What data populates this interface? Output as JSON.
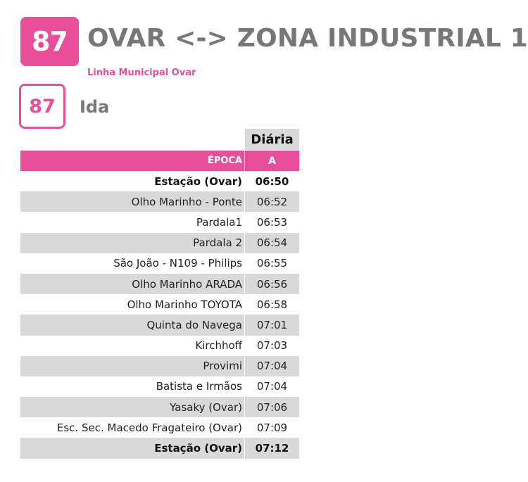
{
  "header": {
    "route_number": "87",
    "route_title": "OVAR <-> ZONA INDUSTRIAL 1",
    "subtitle": "Linha Municipal Ovar",
    "direction_number": "87",
    "direction_label": "Ida"
  },
  "colors": {
    "accent": "#e84e9a",
    "title_gray": "#777777",
    "row_shade": "#d9d9d9"
  },
  "timetable": {
    "day_header": "Diária",
    "season_label": "ÉPOCA",
    "season_value": "A",
    "stops": [
      {
        "name": "Estação (Ovar)",
        "time": "06:50",
        "bold": true,
        "shaded": false
      },
      {
        "name": "Olho Marinho - Ponte",
        "time": "06:52",
        "bold": false,
        "shaded": true
      },
      {
        "name": "Pardala1",
        "time": "06:53",
        "bold": false,
        "shaded": false
      },
      {
        "name": "Pardala 2",
        "time": "06:54",
        "bold": false,
        "shaded": true
      },
      {
        "name": "São João - N109 - Philips",
        "time": "06:55",
        "bold": false,
        "shaded": false
      },
      {
        "name": "Olho Marinho ARADA",
        "time": "06:56",
        "bold": false,
        "shaded": true
      },
      {
        "name": "Olho Marinho TOYOTA",
        "time": "06:58",
        "bold": false,
        "shaded": false
      },
      {
        "name": "Quinta do Navega",
        "time": "07:01",
        "bold": false,
        "shaded": true
      },
      {
        "name": "Kirchhoff",
        "time": "07:03",
        "bold": false,
        "shaded": false
      },
      {
        "name": "Provimi",
        "time": "07:04",
        "bold": false,
        "shaded": true
      },
      {
        "name": "Batista e Irmãos",
        "time": "07:04",
        "bold": false,
        "shaded": false
      },
      {
        "name": "Yasaky (Ovar)",
        "time": "07:06",
        "bold": false,
        "shaded": true
      },
      {
        "name": "Esc. Sec. Macedo Fragateiro (Ovar)",
        "time": "07:09",
        "bold": false,
        "shaded": false
      },
      {
        "name": "Estação (Ovar)",
        "time": "07:12",
        "bold": true,
        "shaded": true
      }
    ]
  }
}
